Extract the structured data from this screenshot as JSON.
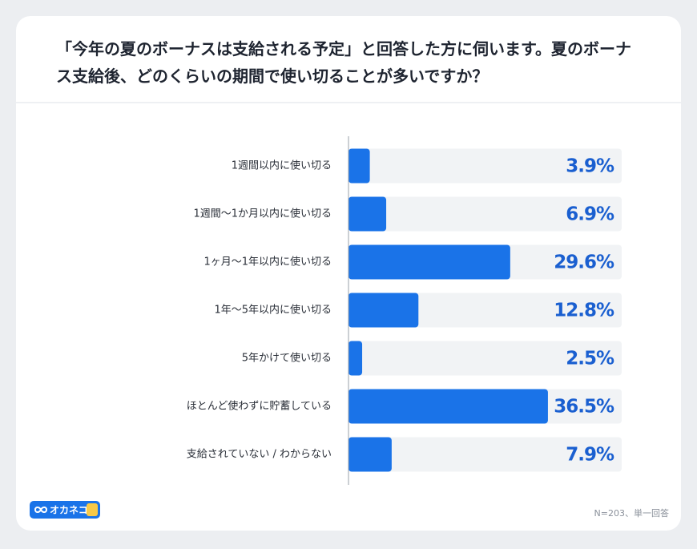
{
  "chart_data": {
    "type": "hbar",
    "title": "「今年の夏のボーナスは支給される予定」と回答した方に伺います。夏のボーナス支給後、どのくらいの期間で使い切ることが多いですか？",
    "categories": [
      "1週間以内に使い切る",
      "1週間〜1か月以内に使い切る",
      "1ヶ月〜1年以内に使い切る",
      "1年〜5年以内に使い切る",
      "5年かけて使い切る",
      "ほとんど使わずに貯蓄している",
      "支給されていない / わからない"
    ],
    "values": [
      3.9,
      6.9,
      29.6,
      12.8,
      2.5,
      36.5,
      7.9
    ],
    "value_labels": [
      "3.9%",
      "6.9%",
      "29.6%",
      "12.8%",
      "2.5%",
      "36.5%",
      "7.9%"
    ],
    "color": "#1a73e8",
    "xlim": [
      0,
      50
    ],
    "note": "N=203、単一回答"
  },
  "brand": "オカネコ"
}
